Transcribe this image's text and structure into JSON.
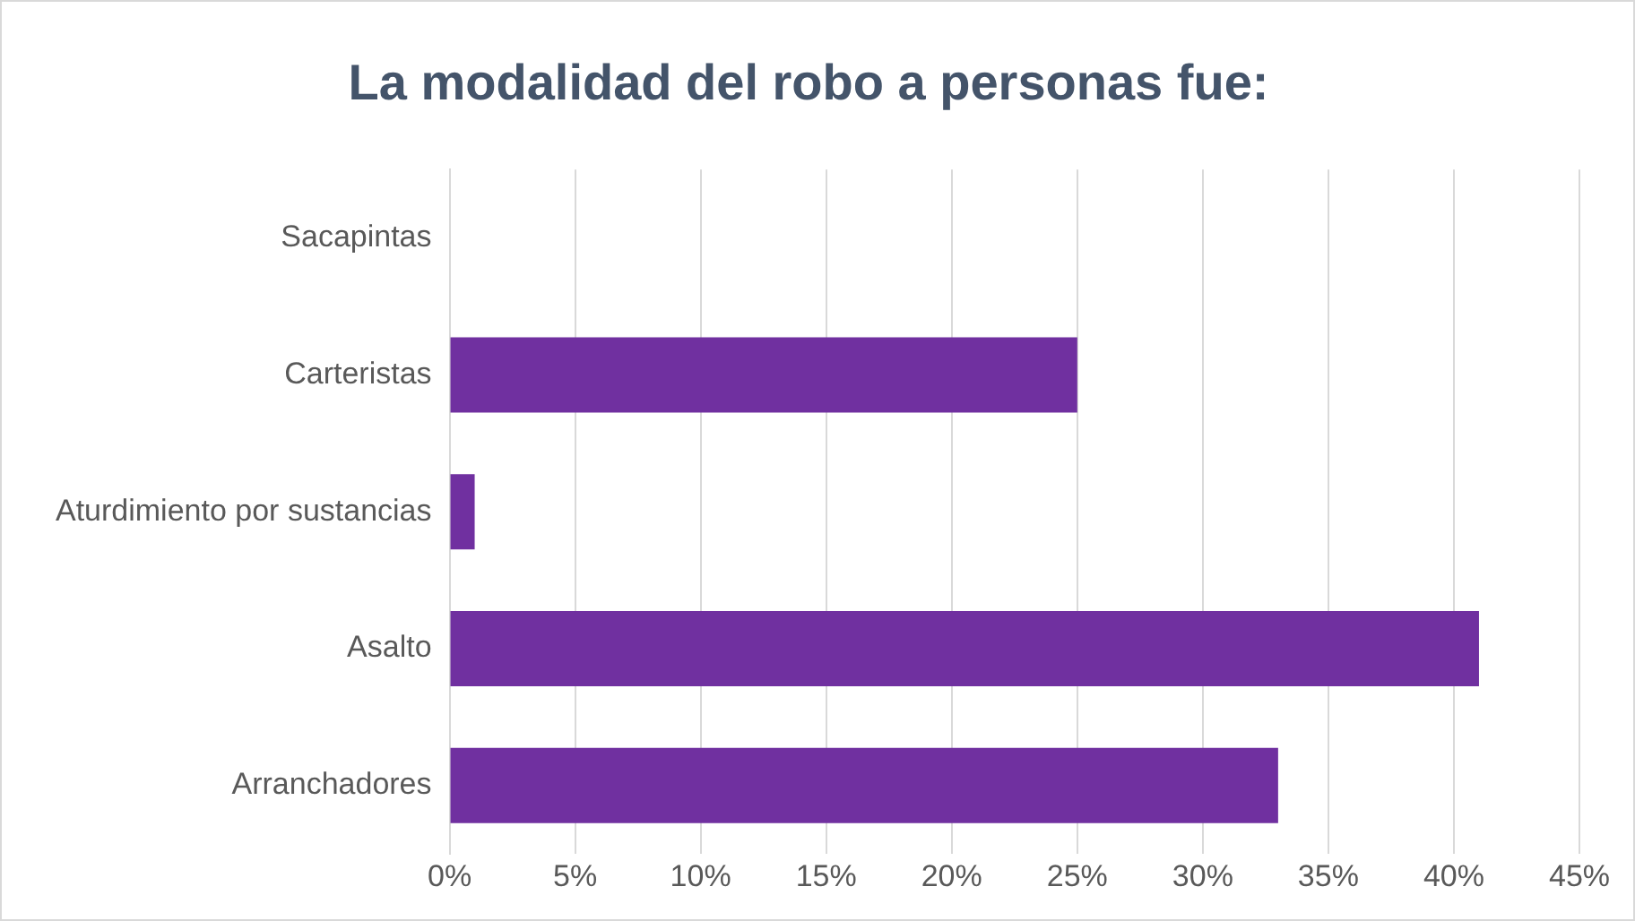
{
  "chart_data": {
    "type": "bar",
    "orientation": "horizontal",
    "title": "La modalidad del robo a personas fue:",
    "categories": [
      "Sacapintas",
      "Carteristas",
      "Aturdimiento por sustancias",
      "Asalto",
      "Arranchadores"
    ],
    "values": [
      0,
      25,
      1,
      41,
      33
    ],
    "color": "#7030a0",
    "xlim": [
      0,
      45
    ],
    "xticks": [
      {
        "value": 0,
        "label": "0%"
      },
      {
        "value": 5,
        "label": "5%"
      },
      {
        "value": 10,
        "label": "10%"
      },
      {
        "value": 15,
        "label": "15%"
      },
      {
        "value": 20,
        "label": "20%"
      },
      {
        "value": 25,
        "label": "25%"
      },
      {
        "value": 30,
        "label": "30%"
      },
      {
        "value": 35,
        "label": "35%"
      },
      {
        "value": 40,
        "label": "40%"
      },
      {
        "value": 45,
        "label": "45%"
      }
    ],
    "grid": "x",
    "legend": false
  }
}
